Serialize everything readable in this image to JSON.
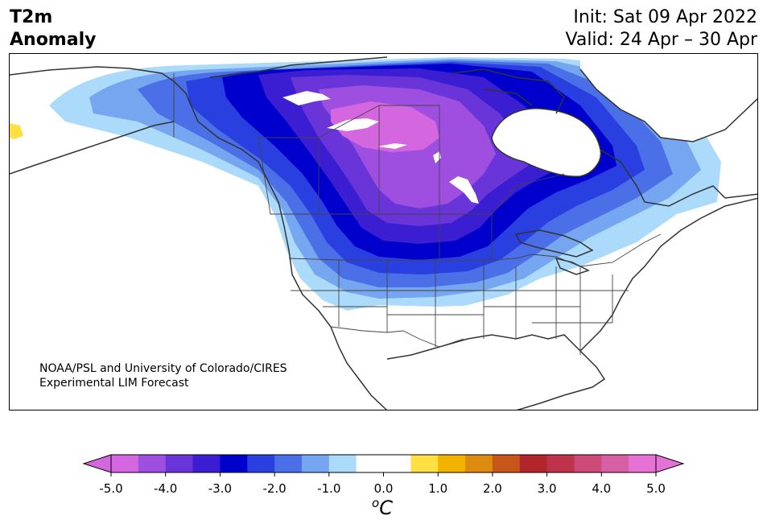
{
  "title": {
    "variable_line1": "T2m",
    "variable_line2": "Anomaly",
    "init": "Init: Sat 09 Apr 2022",
    "valid": "Valid: 24 Apr – 30 Apr"
  },
  "credit": {
    "line1": "NOAA/PSL and University of Colorado/CIRES",
    "line2": "Experimental LIM Forecast"
  },
  "colorbar": {
    "unit_base": "C",
    "unit_sup": "o",
    "ticks": [
      "-5.0",
      "-4.0",
      "-3.0",
      "-2.0",
      "-1.0",
      "0.0",
      "1.0",
      "2.0",
      "3.0",
      "4.0",
      "5.0"
    ],
    "bin_colors": [
      "#d466e0",
      "#9e4fdf",
      "#6a35d8",
      "#3b1ed2",
      "#0000cd",
      "#2a3fe0",
      "#4a6fe6",
      "#76a6ef",
      "#acdafb",
      "#ffffff",
      "#ffffff",
      "#ffe044",
      "#f0b400",
      "#dd8a10",
      "#c7561a",
      "#b0262a",
      "#bf334a",
      "#cc4a78",
      "#d760a5",
      "#e672d6"
    ],
    "under_color": "#d466e0",
    "over_color": "#e672d6"
  },
  "map": {
    "region": "North America",
    "field": "2m temperature anomaly forecast",
    "colors": {
      "c_1": "#acdafb",
      "c_15": "#76a6ef",
      "c_2": "#4a6fe6",
      "c_25": "#2a3fe0",
      "c_3": "#0000cd",
      "c_35": "#3b1ed2",
      "c_4": "#6a35d8",
      "c_45": "#9e4fdf",
      "c_5": "#d466e0",
      "warm_1": "#ffe044",
      "coast": "#333333",
      "border": "#444444"
    }
  }
}
